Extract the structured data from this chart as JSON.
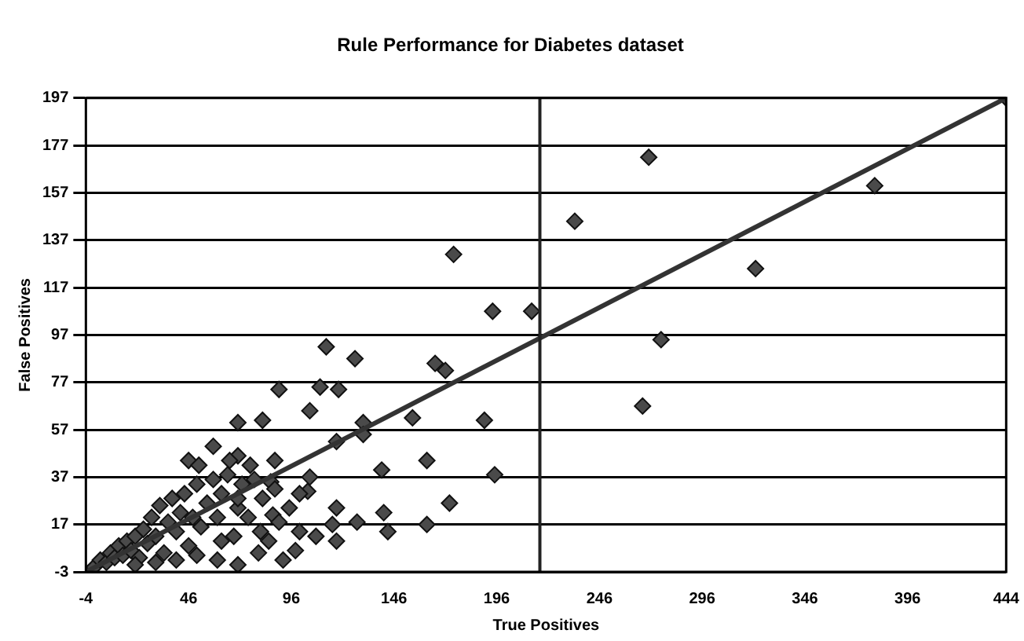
{
  "chart_data": {
    "type": "scatter",
    "title": "Rule Performance for Diabetes dataset",
    "xlabel": "True Positives",
    "ylabel": "False Positives",
    "xlim": [
      -4,
      444
    ],
    "xticks": [
      -4,
      46,
      96,
      146,
      196,
      246,
      296,
      346,
      396,
      444
    ],
    "ylim": [
      -3,
      197
    ],
    "yticks": [
      -3,
      17,
      37,
      57,
      77,
      97,
      117,
      137,
      157,
      177,
      197
    ],
    "grid": "y",
    "legend": false,
    "ref_lines": [
      {
        "axis": "x",
        "value": 217,
        "color": "#222222"
      }
    ],
    "series": [
      {
        "marker": "diamond",
        "color": "#4a4a4a",
        "x": [
          213,
          234,
          270,
          380,
          322,
          276,
          267,
          444,
          175,
          194,
          113,
          127,
          166,
          171,
          110,
          119,
          90,
          105,
          155,
          190,
          131,
          131,
          118,
          70,
          82,
          162,
          195,
          140,
          105,
          104,
          70,
          58,
          46,
          51,
          86,
          118,
          141,
          173,
          128,
          143,
          162,
          116,
          108,
          118,
          100,
          87,
          81,
          62,
          70,
          0,
          3,
          6,
          8,
          10,
          12,
          14,
          16,
          18,
          20,
          22,
          24,
          26,
          28,
          30,
          32,
          34,
          36,
          38,
          40,
          42,
          44,
          46,
          48,
          50,
          52,
          55,
          58,
          60,
          62,
          65,
          68,
          70,
          72,
          75,
          78,
          80,
          82,
          85,
          88,
          90,
          92,
          95,
          98,
          100,
          60,
          70,
          50,
          40,
          30,
          20,
          76,
          66,
          88
        ],
        "values": [
          107,
          145,
          172,
          160,
          125,
          95,
          67,
          197,
          131,
          107,
          92,
          87,
          85,
          82,
          75,
          74,
          74,
          65,
          62,
          61,
          60,
          55,
          52,
          60,
          61,
          44,
          38,
          40,
          37,
          31,
          46,
          50,
          44,
          42,
          35,
          24,
          22,
          26,
          18,
          14,
          17,
          17,
          12,
          10,
          14,
          21,
          14,
          10,
          24,
          -1,
          2,
          1,
          5,
          3,
          8,
          4,
          10,
          6,
          12,
          3,
          15,
          9,
          20,
          12,
          25,
          5,
          18,
          28,
          14,
          22,
          30,
          8,
          20,
          34,
          16,
          26,
          36,
          20,
          30,
          38,
          12,
          28,
          34,
          20,
          36,
          5,
          28,
          10,
          32,
          18,
          2,
          24,
          6,
          30,
          2,
          0,
          4,
          2,
          1,
          0,
          42,
          44,
          44
        ]
      },
      {
        "type": "line",
        "marker": "none",
        "color": "#333333",
        "x": [
          -4,
          444
        ],
        "values": [
          -3,
          197
        ]
      }
    ]
  }
}
